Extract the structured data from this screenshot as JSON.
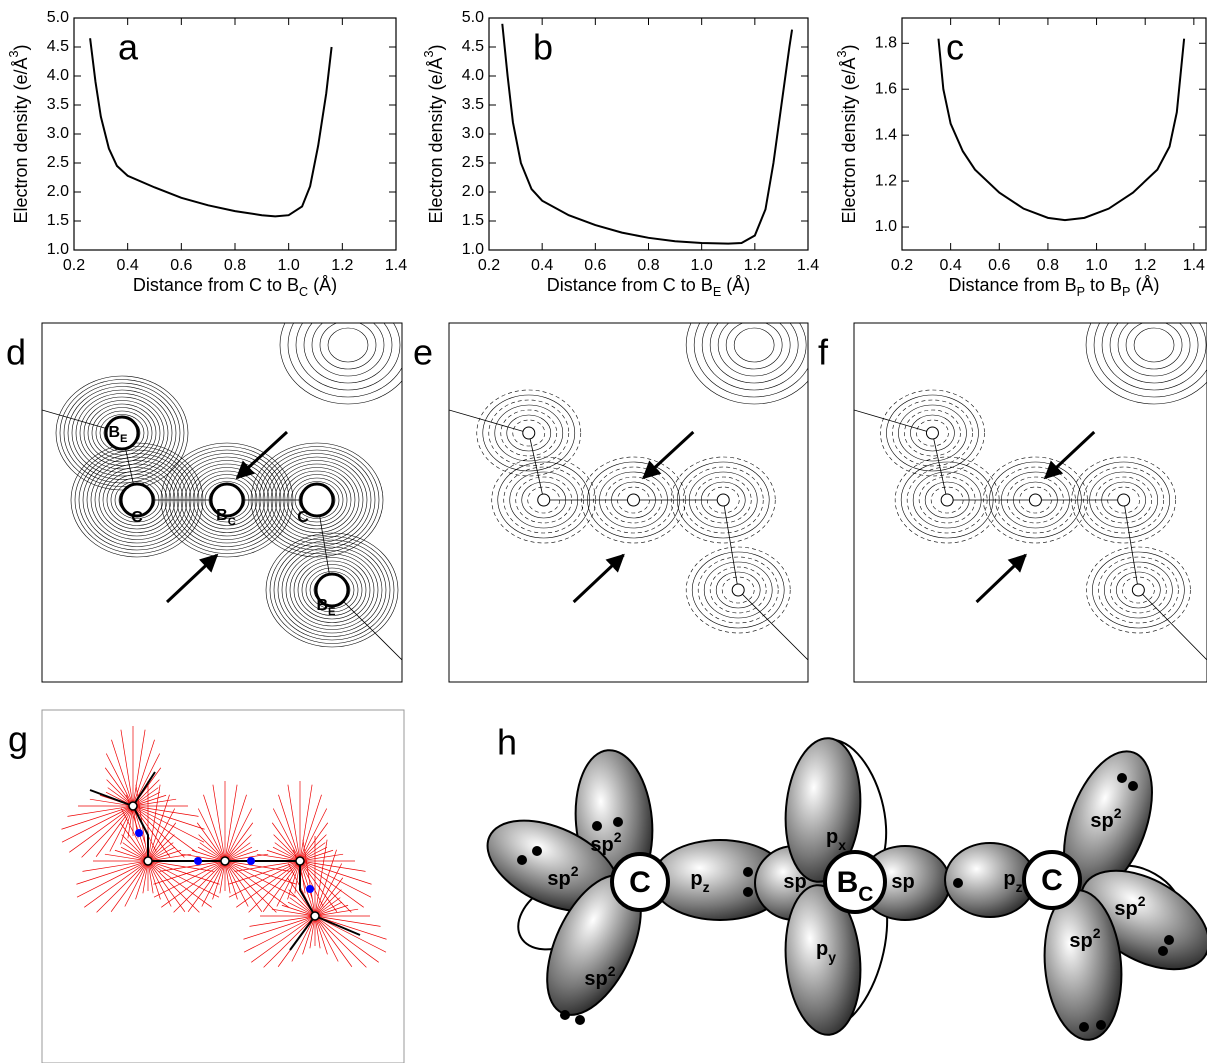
{
  "chart_data": [
    {
      "type": "line",
      "panel_label": "a",
      "xlabel": [
        {
          "t": "Distance from C to B"
        },
        {
          "sub": "C"
        },
        {
          "t": " (Å)"
        }
      ],
      "ylabel": [
        {
          "t": "Electron density (e/Å"
        },
        {
          "sup": "3"
        },
        {
          "t": ")"
        }
      ],
      "xlim": [
        0.2,
        1.4
      ],
      "ylim": [
        1.0,
        5.0
      ],
      "xticks": [
        0.2,
        0.4,
        0.6,
        0.8,
        {
          "value": 1.0,
          "label": "1.0"
        },
        1.2,
        1.4
      ],
      "yticks": [
        {
          "value": 1.0,
          "label": "1.0"
        },
        1.5,
        {
          "value": 2.0,
          "label": "2.0"
        },
        2.5,
        {
          "value": 3.0,
          "label": "3.0"
        },
        3.5,
        {
          "value": 4.0,
          "label": "4.0"
        },
        4.5,
        {
          "value": 5.0,
          "label": "5.0"
        }
      ],
      "color": "#000000",
      "x": [
        0.26,
        0.28,
        0.3,
        0.33,
        0.36,
        0.4,
        0.5,
        0.6,
        0.7,
        0.8,
        0.9,
        0.95,
        1.0,
        1.05,
        1.08,
        1.11,
        1.14,
        1.16
      ],
      "values": [
        4.65,
        3.9,
        3.3,
        2.75,
        2.45,
        2.28,
        2.08,
        1.9,
        1.77,
        1.67,
        1.6,
        1.58,
        1.6,
        1.75,
        2.1,
        2.8,
        3.7,
        4.5
      ]
    },
    {
      "type": "line",
      "panel_label": "b",
      "xlabel": [
        {
          "t": "Distance from C to B"
        },
        {
          "sub": "E"
        },
        {
          "t": " (Å)"
        }
      ],
      "ylabel": [
        {
          "t": "Electron density (e/Å"
        },
        {
          "sup": "3"
        },
        {
          "t": ")"
        }
      ],
      "xlim": [
        0.2,
        1.4
      ],
      "ylim": [
        1.0,
        5.0
      ],
      "xticks": [
        0.2,
        0.4,
        0.6,
        0.8,
        {
          "value": 1.0,
          "label": "1.0"
        },
        1.2,
        1.4
      ],
      "yticks": [
        {
          "value": 1.0,
          "label": "1.0"
        },
        1.5,
        {
          "value": 2.0,
          "label": "2.0"
        },
        2.5,
        {
          "value": 3.0,
          "label": "3.0"
        },
        3.5,
        {
          "value": 4.0,
          "label": "4.0"
        },
        4.5,
        {
          "value": 5.0,
          "label": "5.0"
        }
      ],
      "color": "#000000",
      "x": [
        0.25,
        0.27,
        0.29,
        0.32,
        0.36,
        0.4,
        0.5,
        0.6,
        0.7,
        0.8,
        0.9,
        1.0,
        1.1,
        1.15,
        1.2,
        1.24,
        1.27,
        1.3,
        1.33,
        1.34
      ],
      "values": [
        4.9,
        4.0,
        3.2,
        2.5,
        2.05,
        1.85,
        1.6,
        1.43,
        1.3,
        1.21,
        1.15,
        1.12,
        1.11,
        1.12,
        1.25,
        1.7,
        2.5,
        3.5,
        4.5,
        4.8
      ]
    },
    {
      "type": "line",
      "panel_label": "c",
      "xlabel": [
        {
          "t": "Distance from B"
        },
        {
          "sub": "P"
        },
        {
          "t": " to B"
        },
        {
          "sub": "P"
        },
        {
          "t": " (Å)"
        }
      ],
      "ylabel": [
        {
          "t": "Electron density (e/Å"
        },
        {
          "sup": "3"
        },
        {
          "t": ")"
        }
      ],
      "xlim": [
        0.2,
        1.45
      ],
      "ylim": [
        0.9,
        1.91
      ],
      "xticks": [
        0.2,
        0.4,
        0.6,
        0.8,
        {
          "value": 1.0,
          "label": "1.0"
        },
        1.2,
        1.4
      ],
      "yticks": [
        {
          "value": 1.0,
          "label": "1.0"
        },
        1.2,
        1.4,
        1.6,
        1.8
      ],
      "color": "#000000",
      "x": [
        0.35,
        0.37,
        0.4,
        0.45,
        0.5,
        0.6,
        0.7,
        0.8,
        0.87,
        0.95,
        1.05,
        1.15,
        1.25,
        1.3,
        1.33,
        1.36
      ],
      "values": [
        1.82,
        1.6,
        1.45,
        1.33,
        1.25,
        1.15,
        1.08,
        1.04,
        1.03,
        1.04,
        1.08,
        1.15,
        1.25,
        1.35,
        1.5,
        1.82
      ]
    }
  ],
  "panels": {
    "d": {
      "label": "d",
      "atoms": [
        [
          {
            "t": "B"
          },
          {
            "sub": "E"
          }
        ],
        [
          {
            "t": "C"
          }
        ],
        [
          {
            "t": "B"
          },
          {
            "sub": "C"
          }
        ],
        [
          {
            "t": "C"
          }
        ],
        [
          {
            "t": "B"
          },
          {
            "sub": "E"
          }
        ]
      ]
    },
    "e": {
      "label": "e"
    },
    "f": {
      "label": "f"
    },
    "g": {
      "label": "g"
    },
    "h": {
      "label": "h",
      "orbitals": [
        [
          {
            "t": "sp"
          },
          {
            "sup": "2"
          }
        ],
        [
          {
            "t": "sp"
          },
          {
            "sup": "2"
          }
        ],
        [
          {
            "t": "C"
          }
        ],
        [
          {
            "t": "p"
          },
          {
            "sub": "z"
          }
        ],
        [
          {
            "t": "sp"
          }
        ],
        [
          {
            "t": "B"
          },
          {
            "sub": "C"
          }
        ],
        [
          {
            "t": "sp"
          }
        ],
        [
          {
            "t": "p"
          },
          {
            "sub": "x"
          }
        ],
        [
          {
            "t": "p"
          },
          {
            "sub": "y"
          }
        ],
        [
          {
            "t": "p"
          },
          {
            "sub": "z"
          }
        ],
        [
          {
            "t": "C"
          }
        ],
        [
          {
            "t": "sp"
          },
          {
            "sup": "2"
          }
        ],
        [
          {
            "t": "sp"
          },
          {
            "sup": "2"
          }
        ],
        [
          {
            "t": "sp"
          },
          {
            "sup": "2"
          }
        ],
        [
          {
            "t": "sp"
          },
          {
            "sup": "2"
          }
        ]
      ]
    }
  }
}
